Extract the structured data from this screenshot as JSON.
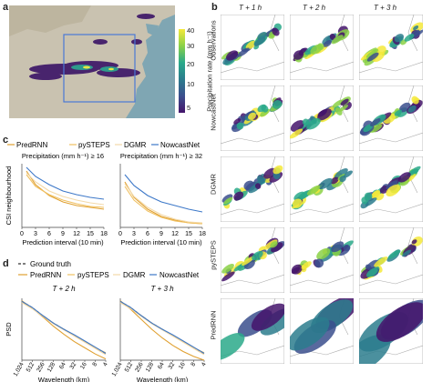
{
  "panel_labels": {
    "a": "a",
    "b": "b",
    "c": "c",
    "d": "d"
  },
  "panel_a": {
    "colorbar_label": "Precipitation rate (mm h⁻¹)",
    "colorbar_ticks": [
      "40",
      "30",
      "20",
      "10",
      "5"
    ],
    "colors": {
      "land": "#c9c2b0",
      "sea": "#7fa6b3",
      "box": "#4a78d6"
    }
  },
  "panel_b": {
    "columns": [
      "T + 1 h",
      "T + 2 h",
      "T + 3 h"
    ],
    "rows": [
      "Observations",
      "NowcastNet",
      "DGMR",
      "pySTEPS",
      "PredRNN"
    ]
  },
  "panel_c": {
    "legend": [
      "PredRNN",
      "pySTEPS",
      "DGMR",
      "NowcastNet"
    ],
    "ylabel": "CSI neighbourhood",
    "xlabel": "Prediction interval (10 min)",
    "chart_data": [
      {
        "type": "line",
        "title": "Precipitation (mm h⁻¹) ≥ 16",
        "x": [
          1,
          3,
          6,
          9,
          12,
          15,
          18
        ],
        "xticks": [
          "0",
          "3",
          "6",
          "9",
          "12",
          "15",
          "18"
        ],
        "ylabel": "CSI neighbourhood",
        "xlabel": "Prediction interval (10 min)",
        "series": [
          {
            "name": "PredRNN",
            "values": [
              0.62,
              0.47,
              0.35,
              0.28,
              0.24,
              0.22,
              0.2
            ]
          },
          {
            "name": "pySTEPS",
            "values": [
              0.58,
              0.45,
              0.36,
              0.3,
              0.26,
              0.23,
              0.22
            ]
          },
          {
            "name": "DGMR",
            "values": [
              0.6,
              0.5,
              0.4,
              0.34,
              0.3,
              0.27,
              0.25
            ]
          },
          {
            "name": "NowcastNet",
            "values": [
              0.66,
              0.56,
              0.47,
              0.4,
              0.36,
              0.33,
              0.31
            ]
          }
        ]
      },
      {
        "type": "line",
        "title": "Precipitation (mm h⁻¹) ≥ 32",
        "x": [
          1,
          3,
          6,
          9,
          12,
          15,
          18
        ],
        "xticks": [
          "0",
          "3",
          "6",
          "9",
          "12",
          "15",
          "18"
        ],
        "xlabel": "Prediction interval (10 min)",
        "series": [
          {
            "name": "PredRNN",
            "values": [
              0.5,
              0.33,
              0.2,
              0.12,
              0.08,
              0.05,
              0.04
            ]
          },
          {
            "name": "pySTEPS",
            "values": [
              0.45,
              0.3,
              0.18,
              0.11,
              0.07,
              0.05,
              0.04
            ]
          },
          {
            "name": "DGMR",
            "values": [
              0.48,
              0.34,
              0.22,
              0.14,
              0.09,
              0.06,
              0.05
            ]
          },
          {
            "name": "NowcastNet",
            "values": [
              0.58,
              0.46,
              0.35,
              0.28,
              0.24,
              0.2,
              0.17
            ]
          }
        ]
      }
    ]
  },
  "panel_d": {
    "legend": [
      "Ground truth",
      "PredRNN",
      "pySTEPS",
      "DGMR",
      "NowcastNet"
    ],
    "ylabel": "PSD",
    "xlabel": "Wavelength (km)",
    "chart_data": [
      {
        "type": "line",
        "title": "T + 2 h",
        "xticks": [
          "1,024",
          "512",
          "256",
          "128",
          "64",
          "32",
          "16",
          "8",
          "4"
        ],
        "xlabel": "Wavelength (km)",
        "ylabel": "PSD",
        "series": [
          {
            "name": "Ground truth",
            "values": [
              0.95,
              0.85,
              0.72,
              0.6,
              0.5,
              0.4,
              0.3,
              0.2,
              0.1
            ]
          },
          {
            "name": "PredRNN",
            "values": [
              0.96,
              0.84,
              0.7,
              0.55,
              0.42,
              0.3,
              0.2,
              0.1,
              0.02
            ]
          },
          {
            "name": "pySTEPS",
            "values": [
              0.94,
              0.84,
              0.72,
              0.6,
              0.5,
              0.4,
              0.3,
              0.2,
              0.12
            ]
          },
          {
            "name": "DGMR",
            "values": [
              0.93,
              0.83,
              0.71,
              0.59,
              0.49,
              0.39,
              0.29,
              0.19,
              0.09
            ]
          },
          {
            "name": "NowcastNet",
            "values": [
              0.95,
              0.85,
              0.72,
              0.6,
              0.5,
              0.41,
              0.31,
              0.21,
              0.11
            ]
          }
        ]
      },
      {
        "type": "line",
        "title": "T + 3 h",
        "xticks": [
          "1,024",
          "512",
          "256",
          "128",
          "64",
          "32",
          "16",
          "8",
          "4"
        ],
        "xlabel": "Wavelength (km)",
        "series": [
          {
            "name": "Ground truth",
            "values": [
              0.95,
              0.85,
              0.72,
              0.6,
              0.5,
              0.4,
              0.3,
              0.2,
              0.1
            ]
          },
          {
            "name": "PredRNN",
            "values": [
              0.96,
              0.82,
              0.66,
              0.5,
              0.36,
              0.24,
              0.14,
              0.06,
              0.0
            ]
          },
          {
            "name": "pySTEPS",
            "values": [
              0.94,
              0.84,
              0.72,
              0.6,
              0.5,
              0.4,
              0.3,
              0.2,
              0.12
            ]
          },
          {
            "name": "DGMR",
            "values": [
              0.93,
              0.83,
              0.71,
              0.59,
              0.49,
              0.39,
              0.29,
              0.19,
              0.09
            ]
          },
          {
            "name": "NowcastNet",
            "values": [
              0.95,
              0.85,
              0.72,
              0.6,
              0.5,
              0.41,
              0.31,
              0.21,
              0.11
            ]
          }
        ]
      }
    ]
  },
  "series_colors": {
    "Ground truth": "#333333",
    "PredRNN": "#e0a030",
    "pySTEPS": "#f0c060",
    "DGMR": "#f3d9a8",
    "NowcastNet": "#3d78c8"
  }
}
